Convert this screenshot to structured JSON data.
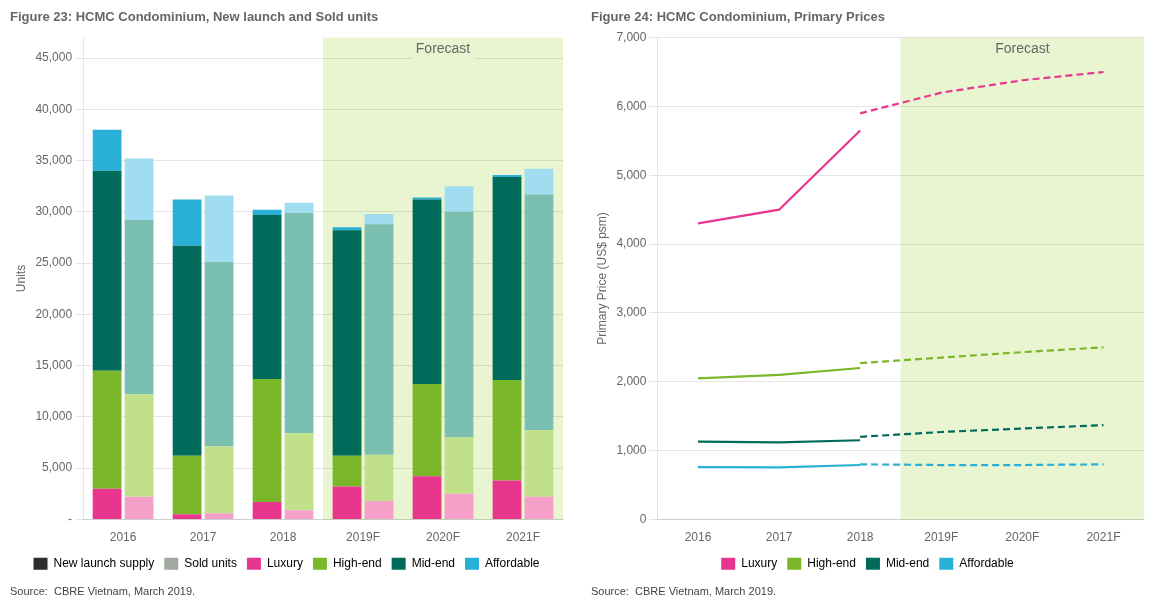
{
  "chart_data": [
    {
      "type": "bar",
      "stacked": true,
      "title": "Figure 23: HCMC Condominium, New launch and Sold units",
      "ylabel": "Units",
      "source": "Source:  CBRE Vietnam, March 2019.",
      "categories": [
        "2016",
        "2017",
        "2018",
        "2019F",
        "2020F",
        "2021F"
      ],
      "groups": [
        {
          "name": "New launch supply",
          "color": "#2d2d2d",
          "series": [
            {
              "name": "Luxury",
              "color": "#e8368f",
              "values": [
                3000,
                500,
                1700,
                3200,
                4200,
                3800
              ]
            },
            {
              "name": "High-end",
              "color": "#7ab829",
              "values": [
                11500,
                5700,
                12000,
                3000,
                9000,
                9800
              ]
            },
            {
              "name": "Mid-end",
              "color": "#006b5a",
              "values": [
                19500,
                20500,
                16000,
                22000,
                18000,
                19800
              ]
            },
            {
              "name": "Affordable",
              "color": "#29b0d6",
              "values": [
                4000,
                4500,
                500,
                300,
                200,
                200
              ]
            }
          ]
        },
        {
          "name": "Sold units",
          "color": "#a0a8a0",
          "series": [
            {
              "name": "Luxury",
              "color": "#f5a0c8",
              "values": [
                2200,
                600,
                900,
                1800,
                2500,
                2200
              ]
            },
            {
              "name": "High-end",
              "color": "#c0e08a",
              "values": [
                10000,
                6500,
                7500,
                4500,
                5500,
                6500
              ]
            },
            {
              "name": "Mid-end",
              "color": "#7bbfb0",
              "values": [
                17000,
                18000,
                21500,
                22500,
                22000,
                23000
              ]
            },
            {
              "name": "Affordable",
              "color": "#a0ddf0",
              "values": [
                6000,
                6500,
                1000,
                1000,
                2500,
                2500
              ]
            }
          ]
        }
      ],
      "ylim": [
        0,
        47000
      ],
      "yticks": [
        {
          "value": 0,
          "label": "-"
        },
        {
          "value": 5000,
          "label": "5,000"
        },
        {
          "value": 10000,
          "label": "10,000"
        },
        {
          "value": 15000,
          "label": "15,000"
        },
        {
          "value": 20000,
          "label": "20,000"
        },
        {
          "value": 25000,
          "label": "25,000"
        },
        {
          "value": 30000,
          "label": "30,000"
        },
        {
          "value": 35000,
          "label": "35,000"
        },
        {
          "value": 40000,
          "label": "40,000"
        },
        {
          "value": 45000,
          "label": "45,000"
        }
      ],
      "grid": true,
      "legend": "bottom",
      "annotations": [
        {
          "text": "Forecast",
          "from": "2019F",
          "to": "2021F",
          "color": "#e8f5d0"
        }
      ]
    },
    {
      "type": "line",
      "title": "Figure 24: HCMC Condominium, Primary Prices",
      "ylabel": "Primary Price (US$ psm)",
      "source": "Source:  CBRE Vietnam, March 2019.",
      "categories": [
        "2016",
        "2017",
        "2018",
        "2019F",
        "2020F",
        "2021F"
      ],
      "series": [
        {
          "name": "Luxury",
          "color": "#e8368f",
          "segments": [
            {
              "line_style": "solid",
              "values": [
                4300,
                4500,
                5650,
                null,
                null,
                null
              ]
            },
            {
              "line_style": "dashed",
              "values": [
                null,
                null,
                5900,
                6200,
                6380,
                6500
              ]
            }
          ]
        },
        {
          "name": "High-end",
          "color": "#7ab829",
          "segments": [
            {
              "line_style": "solid",
              "values": [
                2050,
                2100,
                2200,
                null,
                null,
                null
              ]
            },
            {
              "line_style": "dashed",
              "values": [
                null,
                null,
                2270,
                2350,
                2430,
                2500
              ]
            }
          ]
        },
        {
          "name": "Mid-end",
          "color": "#006b5a",
          "segments": [
            {
              "line_style": "solid",
              "values": [
                1130,
                1120,
                1150,
                null,
                null,
                null
              ]
            },
            {
              "line_style": "dashed",
              "values": [
                null,
                null,
                1200,
                1270,
                1320,
                1370
              ]
            }
          ]
        },
        {
          "name": "Affordable",
          "color": "#29b0d6",
          "segments": [
            {
              "line_style": "solid",
              "values": [
                760,
                755,
                790,
                null,
                null,
                null
              ]
            },
            {
              "line_style": "dashed",
              "values": [
                null,
                null,
                800,
                790,
                790,
                800
              ]
            }
          ]
        }
      ],
      "ylim": [
        0,
        7000
      ],
      "yticks": [
        0,
        {
          "value": 1000,
          "label": "1,000"
        },
        {
          "value": 2000,
          "label": "2,000"
        },
        {
          "value": 3000,
          "label": "3,000"
        },
        {
          "value": 4000,
          "label": "4,000"
        },
        {
          "value": 5000,
          "label": "5,000"
        },
        {
          "value": 6000,
          "label": "6,000"
        },
        {
          "value": 7000,
          "label": "7,000"
        }
      ],
      "grid": true,
      "legend": "bottom",
      "annotations": [
        {
          "text": "Forecast",
          "from": "2019F",
          "to": "2021F",
          "color": "#e8f5d0"
        }
      ]
    }
  ]
}
